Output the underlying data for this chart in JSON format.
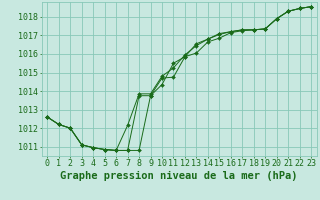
{
  "title": "Graphe pression niveau de la mer (hPa)",
  "background_color": "#c8e8e0",
  "grid_color": "#88c8b8",
  "line_color": "#1a6b1a",
  "marker_color": "#1a6b1a",
  "xlim": [
    -0.5,
    23.5
  ],
  "ylim": [
    1010.5,
    1018.8
  ],
  "yticks": [
    1011,
    1012,
    1013,
    1014,
    1015,
    1016,
    1017,
    1018
  ],
  "xticks": [
    0,
    1,
    2,
    3,
    4,
    5,
    6,
    7,
    8,
    9,
    10,
    11,
    12,
    13,
    14,
    15,
    16,
    17,
    18,
    19,
    20,
    21,
    22,
    23
  ],
  "series": [
    [
      1012.6,
      1012.2,
      1012.0,
      1011.1,
      1010.95,
      1010.85,
      1010.8,
      1010.8,
      1010.8,
      1013.75,
      1014.35,
      1015.5,
      1015.85,
      1016.55,
      1016.8,
      1017.05,
      1017.2,
      1017.3,
      1017.3,
      1017.35,
      1017.9,
      1018.3,
      1018.45,
      1018.55
    ],
    [
      1012.6,
      1012.2,
      1012.0,
      1011.1,
      1010.95,
      1010.85,
      1010.8,
      1010.8,
      1013.75,
      1013.75,
      1014.7,
      1014.75,
      1015.85,
      1016.05,
      1016.65,
      1016.85,
      1017.15,
      1017.25,
      1017.3,
      1017.35,
      1017.9,
      1018.3,
      1018.45,
      1018.55
    ],
    [
      1012.6,
      1012.2,
      1012.0,
      1011.1,
      1010.95,
      1010.85,
      1010.8,
      1012.15,
      1013.85,
      1013.85,
      1014.8,
      1015.25,
      1015.95,
      1016.45,
      1016.8,
      1017.1,
      1017.2,
      1017.3,
      1017.3,
      1017.35,
      1017.9,
      1018.3,
      1018.45,
      1018.55
    ]
  ],
  "title_fontsize": 7.5,
  "tick_fontsize": 6,
  "figsize": [
    3.2,
    2.0
  ],
  "dpi": 100
}
